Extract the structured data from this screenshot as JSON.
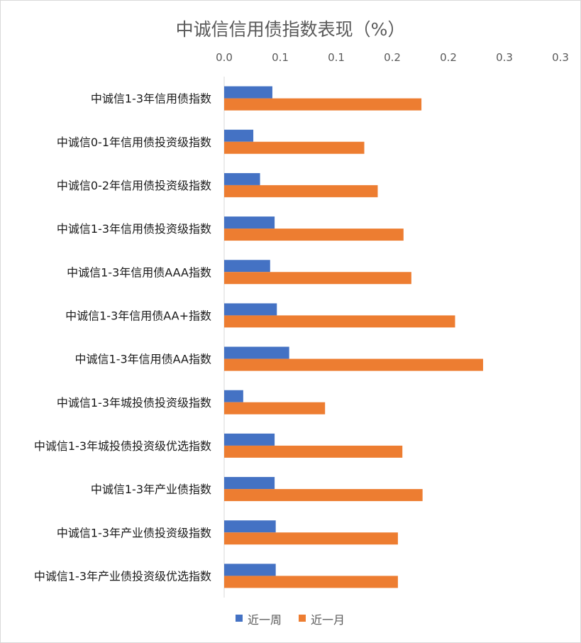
{
  "chart_data": {
    "type": "bar",
    "orientation": "horizontal",
    "title": "中诚信信用债指数表现（%）",
    "xlabel": "",
    "ylabel": "",
    "xlim": [
      0,
      0.3
    ],
    "x_ticks": [
      0.0,
      0.05,
      0.1,
      0.15,
      0.2,
      0.25,
      0.3
    ],
    "x_tick_labels": [
      "0.0",
      "0.1",
      "0.1",
      "0.2",
      "0.2",
      "0.3",
      "0.3"
    ],
    "x_axis_position": "top",
    "grid": false,
    "legend_position": "bottom",
    "categories": [
      "中诚信1-3年信用债指数",
      "中诚信0-1年信用债投资级指数",
      "中诚信0-2年信用债投资级指数",
      "中诚信1-3年信用债投资级指数",
      "中诚信1-3年信用债AAA指数",
      "中诚信1-3年信用债AA+指数",
      "中诚信1-3年信用债AA指数",
      "中诚信1-3年城投债投资级指数",
      "中诚信1-3年城投债投资级优选指数",
      "中诚信1-3年产业债指数",
      "中诚信1-3年产业债投资级指数",
      "中诚信1-3年产业债投资级优选指数"
    ],
    "series": [
      {
        "name": "近一周",
        "color": "#4472c4",
        "values": [
          0.043,
          0.026,
          0.032,
          0.045,
          0.041,
          0.047,
          0.058,
          0.017,
          0.045,
          0.045,
          0.046,
          0.046
        ]
      },
      {
        "name": "近一月",
        "color": "#ed7d31",
        "values": [
          0.176,
          0.125,
          0.137,
          0.16,
          0.167,
          0.206,
          0.231,
          0.09,
          0.159,
          0.177,
          0.155,
          0.155
        ]
      }
    ]
  }
}
